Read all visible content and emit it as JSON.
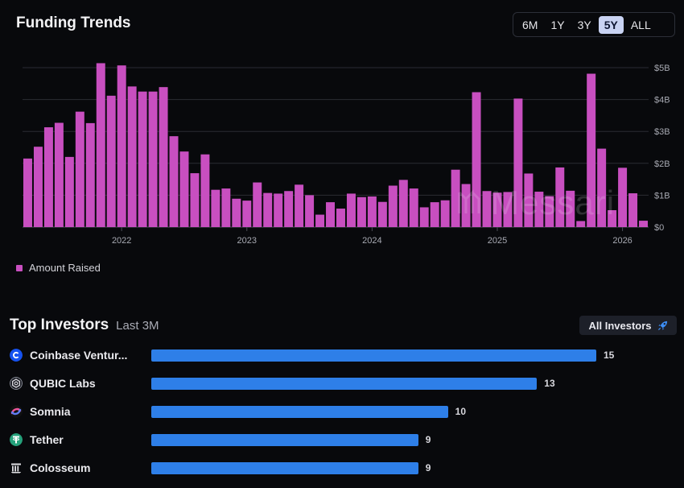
{
  "header": {
    "title": "Funding Trends"
  },
  "ranges": [
    "6M",
    "1Y",
    "3Y",
    "5Y",
    "ALL"
  ],
  "active_range": "5Y",
  "legend": {
    "label": "Amount Raised",
    "color": "#c84fc0"
  },
  "watermark": "Messari",
  "chart_data": {
    "type": "bar",
    "title": "Funding Trends",
    "series": [
      {
        "name": "Amount Raised",
        "unit": "$B"
      }
    ],
    "values": [
      2.15,
      2.52,
      3.13,
      3.27,
      2.2,
      3.62,
      3.26,
      5.14,
      4.12,
      5.07,
      4.41,
      4.25,
      4.25,
      4.39,
      2.85,
      2.37,
      1.69,
      2.28,
      1.17,
      1.21,
      0.89,
      0.83,
      1.4,
      1.07,
      1.05,
      1.13,
      1.33,
      1.0,
      0.39,
      0.78,
      0.58,
      1.05,
      0.94,
      0.96,
      0.79,
      1.3,
      1.48,
      1.21,
      0.62,
      0.78,
      0.84,
      1.8,
      1.35,
      4.23,
      1.13,
      1.08,
      1.1,
      4.03,
      1.68,
      1.11,
      0.97,
      1.87,
      1.14,
      0.19,
      4.81,
      2.46,
      0.53,
      1.86,
      1.06,
      0.2
    ],
    "x_tick_labels": [
      "2022",
      "2023",
      "2024",
      "2025",
      "2026"
    ],
    "x_tick_bar_index": [
      9,
      21,
      33,
      45,
      57
    ],
    "y_ticks": [
      0,
      1,
      2,
      3,
      4,
      5
    ],
    "y_tick_labels": [
      "$0",
      "$1B",
      "$2B",
      "$3B",
      "$4B",
      "$5B"
    ],
    "ylim": [
      0,
      5.2
    ],
    "grid": true,
    "legend_position": "bottom-left",
    "bar_color": "#c84fc0"
  },
  "investors": {
    "title": "Top Investors",
    "subtitle": "Last 3M",
    "all_button": "All Investors",
    "max": 15,
    "items": [
      {
        "name": "Coinbase Ventur...",
        "value": 15,
        "icon": "coinbase-icon",
        "color": "#1652f0"
      },
      {
        "name": "QUBIC Labs",
        "value": 13,
        "icon": "qubic-icon",
        "color": "#6b6f7a"
      },
      {
        "name": "Somnia",
        "value": 10,
        "icon": "somnia-icon",
        "color": "#8e5cf0"
      },
      {
        "name": "Tether",
        "value": 9,
        "icon": "tether-icon",
        "color": "#26a17b"
      },
      {
        "name": "Colosseum",
        "value": 9,
        "icon": "colosseum-icon",
        "color": "#d8d8d8"
      }
    ],
    "bar_color": "#2e7fe8"
  }
}
